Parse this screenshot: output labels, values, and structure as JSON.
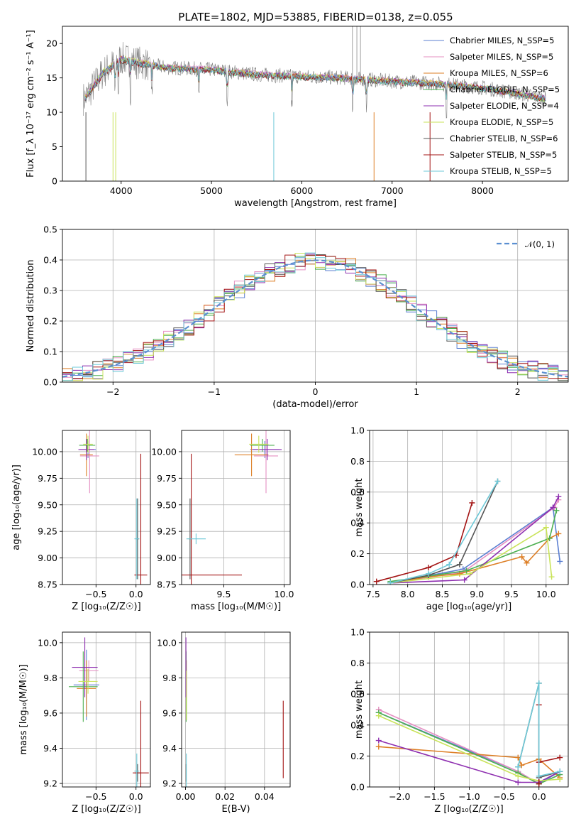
{
  "title": "PLATE=1802, MJD=53885, FIBERID=0138, z=0.055",
  "series_colors": [
    "#5b7fd1",
    "#e58fc2",
    "#dd7f26",
    "#4caf50",
    "#8e2fb0",
    "#c9e35a",
    "#555555",
    "#a31414",
    "#6ec9d8"
  ],
  "chart_data": [
    {
      "type": "line",
      "name": "spectrum",
      "xlabel": "wavelength [Angstrom, rest frame]",
      "ylabel": "Flux [f_λ 10⁻¹⁷ erg cm⁻² s⁻¹ A⁻¹]",
      "xlim": [
        3350,
        8950
      ],
      "ylim": [
        0,
        22.5
      ],
      "xticks": [
        4000,
        5000,
        6000,
        7000,
        8000
      ],
      "yticks": [
        0,
        5,
        10,
        15,
        20
      ],
      "grid": false,
      "legend_placement": "top-right",
      "x": [
        3600,
        3800,
        4000,
        4200,
        4500,
        5000,
        5500,
        6000,
        6500,
        7000,
        7500,
        8000,
        8500,
        8700
      ],
      "series": [
        {
          "name": "Chabrier MILES, N_SSP=5",
          "values": [
            12,
            15.8,
            17.8,
            17.2,
            16.5,
            16.2,
            15.5,
            15.2,
            15.0,
            14.5,
            14.2,
            13.6,
            12.5,
            12.0
          ]
        },
        {
          "name": "Salpeter MILES, N_SSP=5",
          "values": [
            12.1,
            15.9,
            17.9,
            17.3,
            16.6,
            16.3,
            15.6,
            15.3,
            15.0,
            14.6,
            14.3,
            13.6,
            12.5,
            12.0
          ]
        },
        {
          "name": "Kroupa MILES, N_SSP=6",
          "values": [
            12.0,
            15.7,
            17.8,
            17.2,
            16.5,
            16.2,
            15.5,
            15.2,
            15.0,
            14.5,
            14.2,
            13.5,
            12.4,
            11.9
          ]
        },
        {
          "name": "Chabrier ELODIE, N_SSP=5",
          "values": [
            12.2,
            15.8,
            17.7,
            17.1,
            16.4,
            16.1,
            15.4,
            15.1,
            14.9,
            14.4,
            14.1,
            13.5,
            12.4,
            11.9
          ]
        },
        {
          "name": "Salpeter ELODIE, N_SSP=4",
          "values": [
            12.1,
            15.8,
            17.8,
            17.2,
            16.5,
            16.2,
            15.5,
            15.2,
            14.9,
            14.5,
            14.2,
            13.5,
            12.5,
            12.0
          ]
        },
        {
          "name": "Kroupa ELODIE, N_SSP=5",
          "values": [
            12.2,
            15.9,
            17.9,
            17.3,
            16.5,
            16.2,
            15.5,
            15.2,
            15.0,
            14.5,
            14.2,
            13.6,
            12.5,
            12.0
          ]
        },
        {
          "name": "Chabrier STELIB, N_SSP=6",
          "values": [
            11.8,
            15.5,
            17.5,
            17.0,
            16.3,
            16.0,
            15.3,
            15.0,
            14.8,
            14.3,
            14.0,
            13.4,
            12.3,
            11.8
          ]
        },
        {
          "name": "Salpeter STELIB, N_SSP=5",
          "values": [
            11.9,
            15.6,
            17.6,
            17.0,
            16.4,
            16.1,
            15.4,
            15.1,
            14.9,
            14.4,
            14.1,
            13.5,
            12.4,
            11.9
          ]
        },
        {
          "name": "Kroupa STELIB, N_SSP=5",
          "values": [
            12.0,
            15.7,
            17.7,
            17.1,
            16.4,
            16.1,
            15.4,
            15.1,
            14.9,
            14.4,
            14.1,
            13.5,
            12.4,
            11.9
          ]
        }
      ]
    },
    {
      "type": "line",
      "name": "residual-histogram",
      "xlabel": "(data-model)/error",
      "ylabel": "Normed distribution",
      "xlim": [
        -2.5,
        2.5
      ],
      "ylim": [
        0,
        0.5
      ],
      "xticks": [
        -2,
        -1,
        0,
        1,
        2
      ],
      "yticks": [
        0.0,
        0.1,
        0.2,
        0.3,
        0.4,
        0.5
      ],
      "grid": true,
      "legend_placement": "top-right",
      "reference_label": "𝒩(0, 1)",
      "bin_width": 0.1
    },
    {
      "type": "scatter",
      "name": "age-vs-Z",
      "xlabel": "Z [log₁₀(Z/Z☉)]",
      "ylabel": "age  [log₁₀(age/yr)]",
      "xlim": [
        -0.92,
        0.18
      ],
      "ylim": [
        8.75,
        10.2
      ],
      "xticks": [
        -0.5,
        0.0
      ],
      "yticks": [
        8.75,
        9.0,
        9.25,
        9.5,
        9.75,
        10.0
      ],
      "grid": true,
      "points": [
        {
          "x": -0.6,
          "y": 10.02,
          "xerr": 0.1,
          "yerr": 0.08
        },
        {
          "x": -0.58,
          "y": 9.96,
          "xerr": 0.12,
          "yerr": 0.35
        },
        {
          "x": -0.62,
          "y": 9.97,
          "xerr": 0.08,
          "yerr": 0.2
        },
        {
          "x": -0.61,
          "y": 10.06,
          "xerr": 0.1,
          "yerr": 0.06
        },
        {
          "x": -0.62,
          "y": 10.02,
          "xerr": 0.1,
          "yerr": 0.1
        },
        {
          "x": -0.6,
          "y": 10.07,
          "xerr": 0.06,
          "yerr": 0.08
        },
        {
          "x": 0.02,
          "y": 9.18,
          "xerr": 0.02,
          "yerr": 0.38
        },
        {
          "x": 0.06,
          "y": 8.84,
          "xerr": 0.08,
          "yerr": 1.14
        },
        {
          "x": 0.01,
          "y": 9.18,
          "xerr": 0.03,
          "yerr": 0.38
        }
      ]
    },
    {
      "type": "scatter",
      "name": "age-vs-mass",
      "xlabel": "mass [log₁₀(M/M☉)]",
      "ylabel": "",
      "xlim": [
        9.15,
        10.05
      ],
      "ylim": [
        8.75,
        10.2
      ],
      "xticks": [
        9.5,
        10.0
      ],
      "yticks": [
        8.75,
        9.0,
        9.25,
        9.5,
        9.75,
        10.0
      ],
      "grid": true,
      "points": [
        {
          "x": 9.84,
          "y": 10.02,
          "xerr": 0.12,
          "yerr": 0.08
        },
        {
          "x": 9.85,
          "y": 9.96,
          "xerr": 0.1,
          "yerr": 0.35
        },
        {
          "x": 9.73,
          "y": 9.97,
          "xerr": 0.14,
          "yerr": 0.2
        },
        {
          "x": 9.82,
          "y": 10.06,
          "xerr": 0.1,
          "yerr": 0.06
        },
        {
          "x": 9.86,
          "y": 10.02,
          "xerr": 0.12,
          "yerr": 0.1
        },
        {
          "x": 9.79,
          "y": 10.07,
          "xerr": 0.08,
          "yerr": 0.08
        },
        {
          "x": 9.22,
          "y": 9.18,
          "xerr": 0.01,
          "yerr": 0.38
        },
        {
          "x": 9.23,
          "y": 8.84,
          "xerr": 0.42,
          "yerr": 1.14
        },
        {
          "x": 9.27,
          "y": 9.18,
          "xerr": 0.08,
          "yerr": 0.05
        }
      ]
    },
    {
      "type": "line",
      "name": "mass-weight-vs-age",
      "xlabel": "age  [log₁₀(age/yr)]",
      "ylabel": "mass weight",
      "xlim": [
        7.45,
        10.32
      ],
      "ylim": [
        0,
        1.0
      ],
      "xticks": [
        7.5,
        8.0,
        8.5,
        9.0,
        9.5,
        10.0
      ],
      "yticks": [
        0.0,
        0.2,
        0.4,
        0.6,
        0.8,
        1.0
      ],
      "grid": true,
      "series_points": [
        {
          "x": [
            7.75,
            8.8,
            10.1,
            10.2
          ],
          "y": [
            0.01,
            0.1,
            0.5,
            0.15
          ]
        },
        {
          "x": [
            7.75,
            8.8,
            10.12,
            10.18
          ],
          "y": [
            0.01,
            0.08,
            0.5,
            0.55
          ]
        },
        {
          "x": [
            7.75,
            8.3,
            8.75,
            9.65,
            9.72,
            10.05,
            10.18
          ],
          "y": [
            0.01,
            0.05,
            0.07,
            0.18,
            0.14,
            0.3,
            0.33
          ]
        },
        {
          "x": [
            7.75,
            8.85,
            10.05,
            10.15
          ],
          "y": [
            0.02,
            0.09,
            0.3,
            0.48
          ]
        },
        {
          "x": [
            7.75,
            8.82,
            10.1,
            10.18
          ],
          "y": [
            0.01,
            0.03,
            0.5,
            0.57
          ]
        },
        {
          "x": [
            7.75,
            8.9,
            10.0,
            10.08
          ],
          "y": [
            0.01,
            0.07,
            0.37,
            0.05
          ]
        },
        {
          "x": [
            7.75,
            8.3,
            8.75,
            9.3
          ],
          "y": [
            0.01,
            0.06,
            0.13,
            0.67
          ]
        },
        {
          "x": [
            7.55,
            8.3,
            8.7,
            8.93
          ],
          "y": [
            0.02,
            0.11,
            0.19,
            0.53
          ]
        },
        {
          "x": [
            7.75,
            8.3,
            8.6,
            9.3
          ],
          "y": [
            0.01,
            0.07,
            0.13,
            0.67
          ]
        }
      ]
    },
    {
      "type": "scatter",
      "name": "mass-vs-Z",
      "xlabel": "Z [log₁₀(Z/Z☉)]",
      "ylabel": "mass [log₁₀(M/M☉)]",
      "xlim": [
        -0.92,
        0.18
      ],
      "ylim": [
        9.18,
        10.06
      ],
      "xticks": [
        -0.5,
        0.0
      ],
      "yticks": [
        9.2,
        9.4,
        9.6,
        9.8,
        10.0
      ],
      "grid": true,
      "points": [
        {
          "x": -0.62,
          "y": 9.76,
          "xerr": 0.16,
          "yerr": 0.2
        },
        {
          "x": -0.59,
          "y": 9.84,
          "xerr": 0.12,
          "yerr": 0.06
        },
        {
          "x": -0.62,
          "y": 9.74,
          "xerr": 0.12,
          "yerr": 0.16
        },
        {
          "x": -0.66,
          "y": 9.75,
          "xerr": 0.18,
          "yerr": 0.2
        },
        {
          "x": -0.64,
          "y": 9.86,
          "xerr": 0.16,
          "yerr": 0.17
        },
        {
          "x": -0.6,
          "y": 9.78,
          "xerr": 0.12,
          "yerr": 0.07
        },
        {
          "x": 0.02,
          "y": 9.26,
          "xerr": 0.03,
          "yerr": 0.05
        },
        {
          "x": 0.06,
          "y": 9.26,
          "xerr": 0.1,
          "yerr": 0.41
        },
        {
          "x": 0.01,
          "y": 9.27,
          "xerr": 0.03,
          "yerr": 0.1
        }
      ]
    },
    {
      "type": "scatter",
      "name": "mass-vs-EBV",
      "xlabel": "E(B-V)",
      "ylabel": "",
      "xlim": [
        -0.002,
        0.053
      ],
      "ylim": [
        9.18,
        10.06
      ],
      "xticks": [
        0.0,
        0.02,
        0.04
      ],
      "yticks": [
        9.2,
        9.4,
        9.6,
        9.8,
        10.0
      ],
      "grid": true,
      "points": [
        {
          "x": 0.0003,
          "y": 9.84,
          "xerr": 0.0,
          "yerr": 0.06
        },
        {
          "x": 0.0002,
          "y": 9.76,
          "xerr": 0.0,
          "yerr": 0.2
        },
        {
          "x": 0.0004,
          "y": 9.74,
          "xerr": 0.0,
          "yerr": 0.16
        },
        {
          "x": 0.0003,
          "y": 9.75,
          "xerr": 0.0,
          "yerr": 0.2
        },
        {
          "x": 0.0002,
          "y": 9.86,
          "xerr": 0.0,
          "yerr": 0.17
        },
        {
          "x": 0.0005,
          "y": 9.7,
          "xerr": 0.0,
          "yerr": 0.14
        },
        {
          "x": 0.0003,
          "y": 9.26,
          "xerr": 0.0,
          "yerr": 0.05
        },
        {
          "x": 0.0495,
          "y": 9.45,
          "xerr": 0.0,
          "yerr": 0.22
        },
        {
          "x": 0.0004,
          "y": 9.27,
          "xerr": 0.0,
          "yerr": 0.1
        }
      ]
    },
    {
      "type": "line",
      "name": "mass-weight-vs-Z",
      "xlabel": "Z [log₁₀(Z/Z☉)]",
      "ylabel": "mass weight",
      "xlim": [
        -2.43,
        0.42
      ],
      "ylim": [
        0,
        1.0
      ],
      "xticks": [
        -2.0,
        -1.5,
        -1.0,
        -0.5,
        0.0
      ],
      "yticks": [
        0.0,
        0.2,
        0.4,
        0.6,
        0.8,
        1.0
      ],
      "grid": true,
      "series_points": [
        {
          "x": [
            -2.3,
            -0.3,
            0.0,
            0.3
          ],
          "y": [
            0.48,
            0.1,
            0.02,
            0.1
          ]
        },
        {
          "x": [
            -2.3,
            -0.3,
            0.0,
            0.3
          ],
          "y": [
            0.5,
            0.1,
            0.02,
            0.08
          ]
        },
        {
          "x": [
            -2.3,
            -0.3,
            -0.25,
            0.0,
            0.3
          ],
          "y": [
            0.26,
            0.19,
            0.14,
            0.18,
            0.06
          ]
        },
        {
          "x": [
            -2.3,
            -0.3,
            0.0,
            0.3
          ],
          "y": [
            0.48,
            0.09,
            0.02,
            0.08
          ]
        },
        {
          "x": [
            -2.3,
            -0.3,
            0.0,
            0.3
          ],
          "y": [
            0.3,
            0.03,
            0.03,
            0.1
          ]
        },
        {
          "x": [
            -2.3,
            -0.3,
            0.0,
            0.3
          ],
          "y": [
            0.46,
            0.07,
            0.04,
            0.05
          ]
        },
        {
          "x": [
            -0.3,
            0.0,
            0.0,
            0.3
          ],
          "y": [
            0.13,
            0.67,
            0.06,
            0.1
          ]
        },
        {
          "x": [
            0.0,
            0.0,
            0.0,
            0.3
          ],
          "y": [
            0.53,
            0.02,
            0.16,
            0.19
          ]
        },
        {
          "x": [
            -0.3,
            0.0,
            0.0,
            0.3
          ],
          "y": [
            0.13,
            0.67,
            0.07,
            0.1
          ]
        }
      ]
    }
  ]
}
